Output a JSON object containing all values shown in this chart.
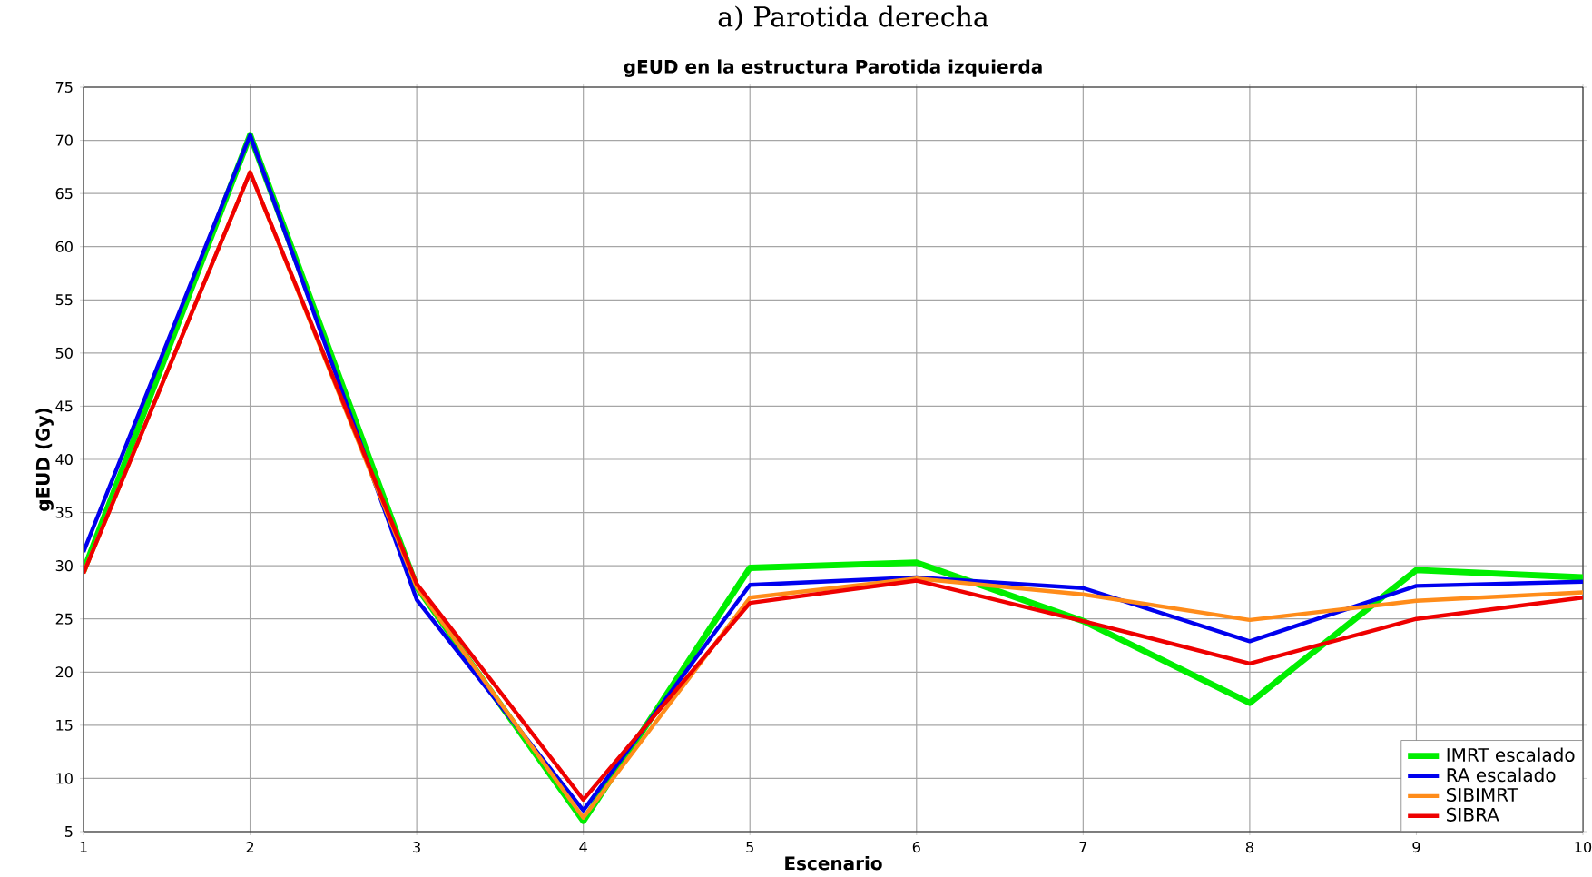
{
  "chart_data": {
    "type": "line",
    "title": "gEUD en la estructura Parotida izquierda",
    "xlabel": "Escenario",
    "ylabel": "gEUD (Gy)",
    "annotations": [
      "a) Parotida derecha"
    ],
    "x": [
      1,
      2,
      3,
      4,
      5,
      6,
      7,
      8,
      9,
      10
    ],
    "xlim": [
      1,
      10
    ],
    "xticks": [
      1,
      2,
      3,
      4,
      5,
      6,
      7,
      8,
      9,
      10
    ],
    "ylim": [
      5,
      75
    ],
    "yticks": [
      5,
      10,
      15,
      20,
      25,
      30,
      35,
      40,
      45,
      50,
      55,
      60,
      65,
      70,
      75
    ],
    "grid": true,
    "legend": "bottom right",
    "line_style": "solid",
    "marker": "none",
    "series": [
      {
        "name": "IMRT escalado",
        "color": "#00ee00",
        "values": [
          29.5,
          70.5,
          28,
          6,
          29.8,
          30.3,
          24.8,
          17.1,
          29.6,
          28.9
        ]
      },
      {
        "name": "RA escalado",
        "color": "#0000ee",
        "values": [
          31.3,
          70.5,
          26.8,
          7,
          28.2,
          28.9,
          27.9,
          22.9,
          28.1,
          28.5
        ]
      },
      {
        "name": "SIBIMRT",
        "color": "#ff8c1a",
        "values": [
          29.3,
          67,
          28,
          6.3,
          27,
          28.8,
          27.3,
          24.9,
          26.7,
          27.5
        ]
      },
      {
        "name": "SIBRA",
        "color": "#ee0000",
        "values": [
          29.3,
          67,
          28.3,
          8,
          26.5,
          28.6,
          24.8,
          20.8,
          25,
          27
        ]
      }
    ]
  }
}
